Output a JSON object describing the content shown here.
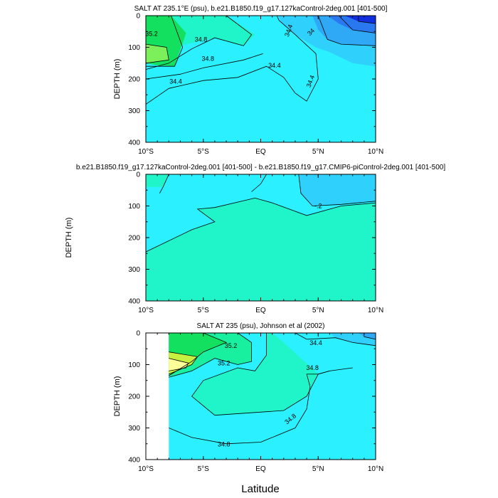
{
  "figure": {
    "xlabel": "Latitude"
  },
  "colors": {
    "deep_blue": "#1030e0",
    "blue": "#2a78f0",
    "mid_blue": "#2fa8f5",
    "light_blue": "#2fd0fb",
    "cyan": "#2af0ff",
    "aqua_green": "#1ff5c8",
    "green_cyan": "#18f0a0",
    "green": "#14e060",
    "light_green": "#7cf05a",
    "yellow_green": "#c8f040",
    "yellow": "#f0f080",
    "pale_yellow": "#ffff9a",
    "orange": "#f0c040"
  },
  "chart_data": [
    {
      "type": "contour",
      "title": "SALT AT 235.1°E (psu), b.e21.B1850.f19_g17.127kaControl-2deg.001 [401-500]",
      "xlabel": "",
      "ylabel": "DEPTH (m)",
      "x_ticks": [
        "10°S",
        "5°S",
        "EQ",
        "5°N",
        "10°N"
      ],
      "x_tick_values": [
        -10,
        -5,
        0,
        5,
        10
      ],
      "xlim": [
        -10,
        10
      ],
      "y_ticks": [
        "0",
        "100",
        "200",
        "300",
        "400"
      ],
      "y_tick_values": [
        0,
        100,
        200,
        300,
        400
      ],
      "ylim": [
        400,
        0
      ],
      "contour_labels": [
        "35.2",
        "34.8",
        "34.8",
        "34.4",
        "34.4",
        "34.4",
        "34.4",
        "34"
      ],
      "filled_regions": [
        {
          "level": "<34.4",
          "color": "cyan",
          "x": [
            -10,
            10,
            10,
            -10
          ],
          "y": [
            0,
            0,
            400,
            400
          ]
        }
      ]
    },
    {
      "type": "contour",
      "title": "b.e21.B1850.f19_g17.127kaControl-2deg.001 [401-500] - b.e21.B1850.f19_g17.CMIP6-piControl-2deg.001 [401-500]",
      "xlabel": "",
      "ylabel": "DEPTH (m)",
      "x_ticks": [
        "10°S",
        "5°S",
        "EQ",
        "5°N",
        "10°N"
      ],
      "x_tick_values": [
        -10,
        -5,
        0,
        5,
        10
      ],
      "xlim": [
        -10,
        10
      ],
      "y_ticks": [
        "0",
        "100",
        "200",
        "300",
        "400"
      ],
      "y_tick_values": [
        0,
        100,
        200,
        300,
        400
      ],
      "ylim": [
        400,
        0
      ],
      "contour_labels": [
        "-.2"
      ]
    },
    {
      "type": "contour",
      "title": "SALT AT 235 (psu), Johnson et al (2002)",
      "xlabel": "",
      "ylabel": "DEPTH (m)",
      "x_ticks": [
        "10°S",
        "5°S",
        "EQ",
        "5°N",
        "10°N"
      ],
      "x_tick_values": [
        -10,
        -5,
        0,
        5,
        10
      ],
      "xlim": [
        -10,
        10
      ],
      "y_ticks": [
        "0",
        "100",
        "200",
        "300",
        "400"
      ],
      "y_tick_values": [
        0,
        100,
        200,
        300,
        400
      ],
      "ylim": [
        400,
        0
      ],
      "data_xlim": [
        -8,
        10
      ],
      "contour_labels": [
        "35.2",
        "35.2",
        "34.4",
        "34.8",
        "34.8",
        "34.8"
      ]
    }
  ]
}
